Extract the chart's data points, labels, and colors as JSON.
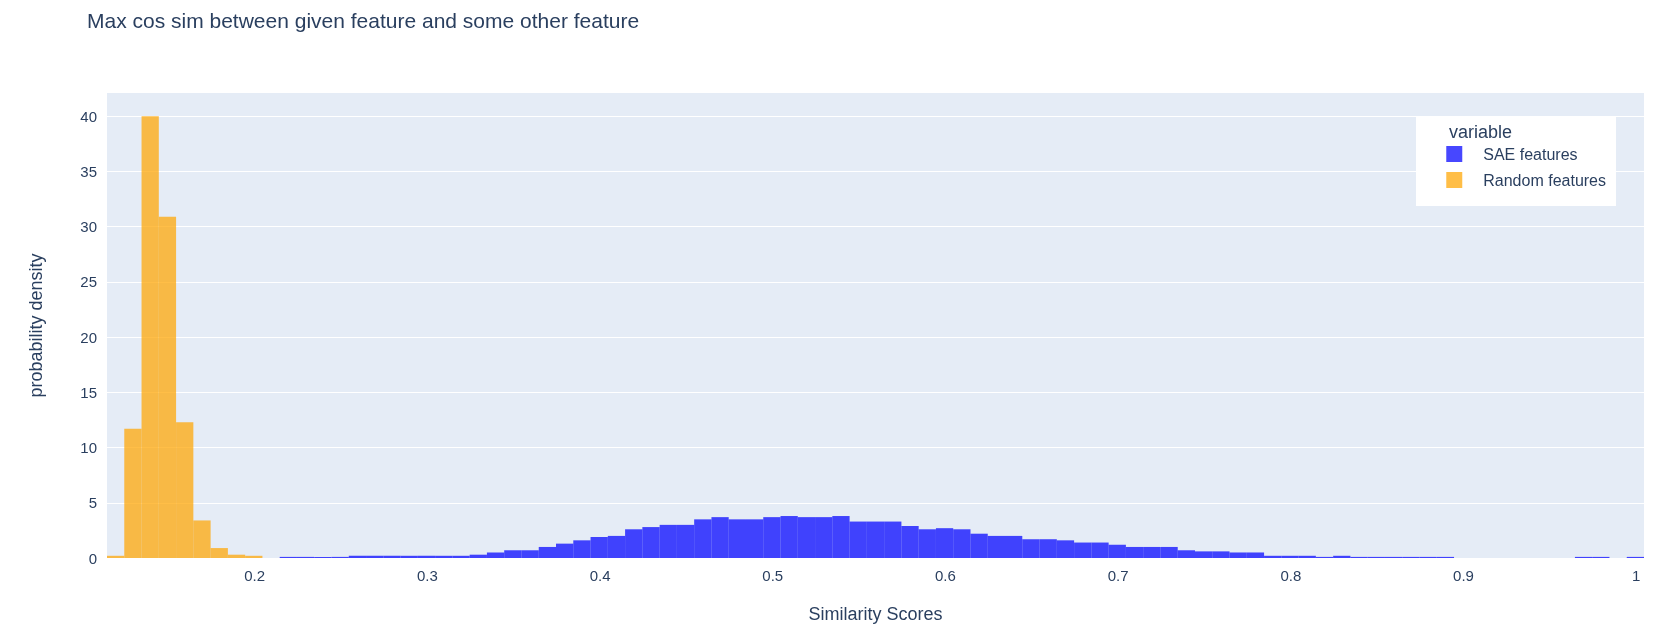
{
  "chart_data": {
    "type": "histogram",
    "title": "Max cos sim between given feature and some other feature",
    "xlabel": "Similarity Scores",
    "ylabel": "probability density",
    "legend_title": "variable",
    "bins": [
      0.1145,
      0.1245,
      0.1345,
      0.1445,
      0.1545,
      0.1645,
      0.1745,
      0.1845,
      0.1945,
      0.2045,
      0.2145,
      0.2245,
      0.2345,
      0.2445,
      0.2545,
      0.2645,
      0.2745,
      0.2845,
      0.2945,
      0.3045,
      0.3145,
      0.3245,
      0.3345,
      0.3445,
      0.3545,
      0.3645,
      0.3745,
      0.3845,
      0.3945,
      0.4045,
      0.4145,
      0.4245,
      0.4345,
      0.4445,
      0.4545,
      0.4645,
      0.4745,
      0.4845,
      0.4945,
      0.5045,
      0.5145,
      0.5245,
      0.5345,
      0.5445,
      0.5545,
      0.5645,
      0.5745,
      0.5845,
      0.5945,
      0.6045,
      0.6145,
      0.6245,
      0.6345,
      0.6445,
      0.6545,
      0.6645,
      0.6745,
      0.6845,
      0.6945,
      0.7045,
      0.7145,
      0.7245,
      0.7345,
      0.7445,
      0.7545,
      0.7645,
      0.7745,
      0.7845,
      0.7945,
      0.8045,
      0.8145,
      0.8245,
      0.8345,
      0.8445,
      0.8545,
      0.8645,
      0.8745,
      0.8845,
      0.8945,
      0.9045,
      0.9145,
      0.9245,
      0.9345,
      0.9445,
      0.9545,
      0.9645,
      0.9745,
      0.9845,
      0.9945,
      1.0045
    ],
    "series": [
      {
        "name": "SAE features",
        "color": "#0000ff",
        "values": [
          null,
          null,
          null,
          null,
          null,
          null,
          null,
          null,
          null,
          null,
          0.1,
          0.1,
          0.1,
          0.1,
          0.2,
          0.2,
          0.2,
          0.2,
          0.2,
          0.2,
          0.2,
          0.3,
          0.5,
          0.7,
          0.7,
          1.0,
          1.3,
          1.6,
          1.9,
          2.0,
          2.6,
          2.8,
          3.0,
          3.0,
          3.5,
          3.7,
          3.5,
          3.5,
          3.7,
          3.8,
          3.7,
          3.7,
          3.8,
          3.3,
          3.3,
          3.3,
          2.9,
          2.6,
          2.7,
          2.6,
          2.2,
          2.0,
          2.0,
          1.7,
          1.7,
          1.6,
          1.4,
          1.4,
          1.2,
          1.0,
          1.0,
          1.0,
          0.7,
          0.6,
          0.6,
          0.5,
          0.5,
          0.2,
          0.2,
          0.2,
          0.1,
          0.2,
          0.1,
          0.1,
          0.1,
          0.1,
          0.1,
          0.1,
          0,
          0,
          0,
          0,
          0,
          0,
          0,
          0.1,
          0.1,
          0,
          0.1
        ]
      },
      {
        "name": "Random features",
        "color": "#ffa500",
        "values": [
          0.2,
          11.7,
          40.0,
          30.9,
          12.3,
          3.4,
          0.9,
          0.3,
          0.2,
          null,
          null,
          null,
          null,
          null,
          null,
          null,
          null,
          null,
          null,
          null,
          null,
          null,
          null,
          null,
          null,
          null,
          null,
          null,
          null,
          null,
          null,
          null,
          null,
          null,
          null,
          null,
          null,
          null,
          null,
          null,
          null,
          null,
          null,
          null,
          null,
          null,
          null,
          null,
          null,
          null,
          null,
          null,
          null,
          null,
          null,
          null,
          null,
          null,
          null,
          null,
          null,
          null,
          null,
          null,
          null,
          null,
          null,
          null,
          null,
          null,
          null,
          null,
          null,
          null,
          null,
          null,
          null,
          null,
          null,
          null,
          null,
          null,
          null,
          null,
          null,
          null,
          null,
          null,
          null
        ]
      }
    ],
    "xlim": [
      0.1145,
      1.0045
    ],
    "xticks": [
      0.2,
      0.3,
      0.4,
      0.5,
      0.6,
      0.7,
      0.8,
      0.9,
      1
    ],
    "ylim": [
      0,
      42.1
    ],
    "yticks": [
      0,
      5,
      10,
      15,
      20,
      25,
      30,
      35,
      40
    ],
    "grid": "y",
    "legend": "top right"
  }
}
